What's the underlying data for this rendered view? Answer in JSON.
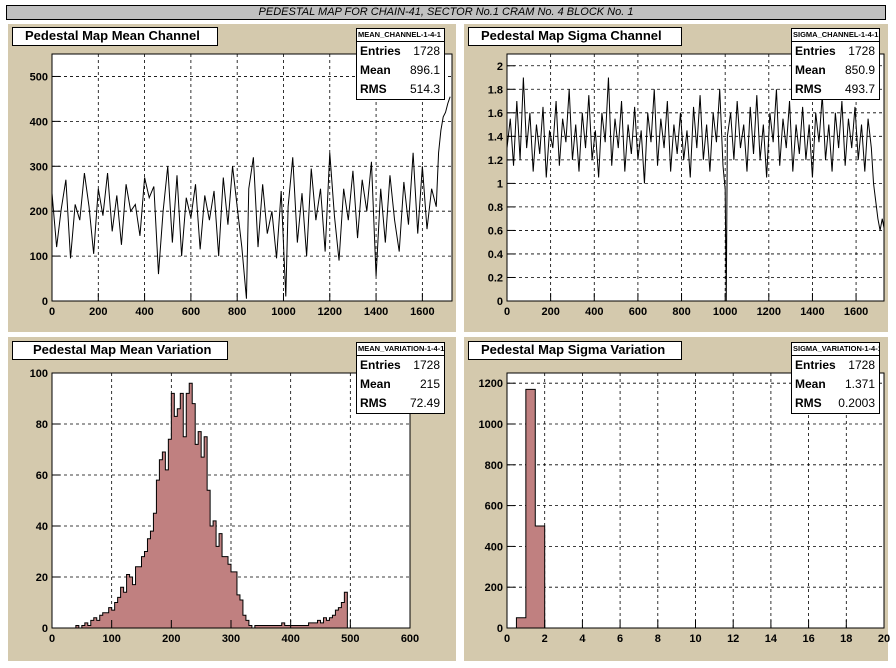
{
  "window": {
    "title": "PEDESTAL MAP FOR CHAIN-41, SECTOR No.1 CRAM No. 4 BLOCK No. 1"
  },
  "footer_text": "",
  "chart_data": [
    {
      "type": "line",
      "title": "Pedestal Map Mean Channel",
      "stats_name": "MEAN_CHANNEL-1-4-1",
      "stats": {
        "entries_label": "Entries",
        "entries": "1728",
        "mean_label": "Mean",
        "mean": "896.1",
        "rms_label": "RMS",
        "rms": "514.3"
      },
      "xlim": [
        0,
        1728
      ],
      "ylim": [
        0,
        550
      ],
      "xticks": [
        0,
        200,
        400,
        600,
        800,
        1000,
        1200,
        1400,
        1600
      ],
      "yticks": [
        0,
        100,
        200,
        300,
        400,
        500
      ],
      "grid": true,
      "series": [
        {
          "points": [
            [
              0,
              240
            ],
            [
              20,
              120
            ],
            [
              40,
              205
            ],
            [
              60,
              270
            ],
            [
              80,
              95
            ],
            [
              100,
              215
            ],
            [
              120,
              180
            ],
            [
              140,
              285
            ],
            [
              160,
              210
            ],
            [
              180,
              105
            ],
            [
              200,
              250
            ],
            [
              220,
              190
            ],
            [
              240,
              285
            ],
            [
              260,
              155
            ],
            [
              280,
              235
            ],
            [
              300,
              125
            ],
            [
              320,
              260
            ],
            [
              340,
              200
            ],
            [
              360,
              215
            ],
            [
              380,
              145
            ],
            [
              400,
              275
            ],
            [
              420,
              230
            ],
            [
              440,
              255
            ],
            [
              460,
              60
            ],
            [
              480,
              200
            ],
            [
              500,
              300
            ],
            [
              520,
              130
            ],
            [
              540,
              280
            ],
            [
              560,
              100
            ],
            [
              580,
              230
            ],
            [
              600,
              185
            ],
            [
              620,
              260
            ],
            [
              640,
              115
            ],
            [
              660,
              235
            ],
            [
              680,
              180
            ],
            [
              700,
              245
            ],
            [
              720,
              100
            ],
            [
              740,
              275
            ],
            [
              760,
              170
            ],
            [
              780,
              300
            ],
            [
              800,
              210
            ],
            [
              820,
              120
            ],
            [
              840,
              5
            ],
            [
              850,
              250
            ],
            [
              870,
              320
            ],
            [
              890,
              120
            ],
            [
              910,
              260
            ],
            [
              930,
              150
            ],
            [
              950,
              200
            ],
            [
              970,
              95
            ],
            [
              990,
              245
            ],
            [
              1010,
              10
            ],
            [
              1020,
              210
            ],
            [
              1040,
              320
            ],
            [
              1060,
              130
            ],
            [
              1080,
              240
            ],
            [
              1100,
              100
            ],
            [
              1120,
              295
            ],
            [
              1140,
              180
            ],
            [
              1160,
              250
            ],
            [
              1180,
              110
            ],
            [
              1200,
              330
            ],
            [
              1220,
              190
            ],
            [
              1240,
              90
            ],
            [
              1260,
              250
            ],
            [
              1280,
              180
            ],
            [
              1300,
              290
            ],
            [
              1320,
              140
            ],
            [
              1340,
              270
            ],
            [
              1360,
              200
            ],
            [
              1380,
              310
            ],
            [
              1400,
              55
            ],
            [
              1420,
              250
            ],
            [
              1440,
              130
            ],
            [
              1460,
              280
            ],
            [
              1480,
              180
            ],
            [
              1500,
              110
            ],
            [
              1520,
              265
            ],
            [
              1540,
              170
            ],
            [
              1560,
              330
            ],
            [
              1580,
              150
            ],
            [
              1600,
              300
            ],
            [
              1620,
              160
            ],
            [
              1640,
              250
            ],
            [
              1660,
              210
            ],
            [
              1670,
              330
            ],
            [
              1680,
              380
            ],
            [
              1690,
              410
            ],
            [
              1700,
              420
            ],
            [
              1710,
              440
            ],
            [
              1720,
              455
            ]
          ]
        }
      ]
    },
    {
      "type": "line",
      "title": "Pedestal Map Sigma Channel",
      "stats_name": "SIGMA_CHANNEL-1-4-1",
      "stats": {
        "entries_label": "Entries",
        "entries": "1728",
        "mean_label": "Mean",
        "mean": "850.9",
        "rms_label": "RMS",
        "rms": "493.7"
      },
      "xlim": [
        0,
        1728
      ],
      "ylim": [
        0,
        2.1
      ],
      "xticks": [
        0,
        200,
        400,
        600,
        800,
        1000,
        1200,
        1400,
        1600
      ],
      "yticks": [
        0,
        0.2,
        0.4,
        0.6,
        0.8,
        1,
        1.2,
        1.4,
        1.6,
        1.8,
        2
      ],
      "grid": true,
      "series": [
        {
          "points": [
            [
              0,
              1.3
            ],
            [
              15,
              1.55
            ],
            [
              30,
              1.15
            ],
            [
              45,
              1.7
            ],
            [
              60,
              1.2
            ],
            [
              75,
              1.9
            ],
            [
              90,
              1.3
            ],
            [
              105,
              1.6
            ],
            [
              120,
              1.1
            ],
            [
              135,
              1.5
            ],
            [
              150,
              1.25
            ],
            [
              165,
              1.65
            ],
            [
              180,
              1.05
            ],
            [
              195,
              1.45
            ],
            [
              210,
              1.3
            ],
            [
              225,
              1.7
            ],
            [
              240,
              1.15
            ],
            [
              255,
              1.55
            ],
            [
              270,
              1.35
            ],
            [
              285,
              1.8
            ],
            [
              300,
              1.2
            ],
            [
              315,
              1.5
            ],
            [
              330,
              1.1
            ],
            [
              345,
              1.6
            ],
            [
              360,
              1.3
            ],
            [
              375,
              1.75
            ],
            [
              390,
              1.2
            ],
            [
              405,
              1.45
            ],
            [
              420,
              1.05
            ],
            [
              435,
              1.6
            ],
            [
              450,
              1.35
            ],
            [
              465,
              1.9
            ],
            [
              480,
              1.15
            ],
            [
              495,
              1.55
            ],
            [
              510,
              1.3
            ],
            [
              525,
              1.7
            ],
            [
              540,
              1.1
            ],
            [
              555,
              1.5
            ],
            [
              570,
              1.25
            ],
            [
              585,
              1.65
            ],
            [
              600,
              1.2
            ],
            [
              615,
              1.45
            ],
            [
              630,
              1.0
            ],
            [
              645,
              1.6
            ],
            [
              660,
              1.35
            ],
            [
              675,
              1.8
            ],
            [
              690,
              1.15
            ],
            [
              705,
              1.55
            ],
            [
              720,
              1.3
            ],
            [
              735,
              1.7
            ],
            [
              750,
              1.1
            ],
            [
              765,
              1.5
            ],
            [
              780,
              1.25
            ],
            [
              795,
              1.6
            ],
            [
              810,
              1.2
            ],
            [
              825,
              1.45
            ],
            [
              840,
              1.05
            ],
            [
              855,
              1.65
            ],
            [
              870,
              1.3
            ],
            [
              885,
              1.75
            ],
            [
              900,
              1.2
            ],
            [
              915,
              1.5
            ],
            [
              930,
              1.1
            ],
            [
              945,
              1.6
            ],
            [
              960,
              1.35
            ],
            [
              975,
              1.8
            ],
            [
              990,
              1.15
            ],
            [
              1000,
              0.95
            ],
            [
              1005,
              0.0
            ],
            [
              1010,
              1.4
            ],
            [
              1025,
              1.6
            ],
            [
              1040,
              1.2
            ],
            [
              1055,
              1.7
            ],
            [
              1070,
              1.3
            ],
            [
              1085,
              1.5
            ],
            [
              1100,
              1.1
            ],
            [
              1115,
              1.65
            ],
            [
              1130,
              1.25
            ],
            [
              1145,
              1.75
            ],
            [
              1160,
              1.2
            ],
            [
              1175,
              1.5
            ],
            [
              1190,
              1.05
            ],
            [
              1205,
              1.6
            ],
            [
              1220,
              1.35
            ],
            [
              1235,
              1.8
            ],
            [
              1250,
              1.15
            ],
            [
              1265,
              1.55
            ],
            [
              1280,
              1.3
            ],
            [
              1295,
              1.7
            ],
            [
              1310,
              1.1
            ],
            [
              1325,
              1.5
            ],
            [
              1340,
              1.25
            ],
            [
              1355,
              1.65
            ],
            [
              1370,
              1.2
            ],
            [
              1385,
              1.5
            ],
            [
              1400,
              1.05
            ],
            [
              1415,
              1.6
            ],
            [
              1430,
              1.35
            ],
            [
              1445,
              1.75
            ],
            [
              1460,
              1.2
            ],
            [
              1475,
              1.5
            ],
            [
              1490,
              1.1
            ],
            [
              1505,
              1.6
            ],
            [
              1520,
              1.3
            ],
            [
              1535,
              1.7
            ],
            [
              1550,
              1.15
            ],
            [
              1565,
              1.55
            ],
            [
              1580,
              1.3
            ],
            [
              1595,
              1.65
            ],
            [
              1610,
              1.2
            ],
            [
              1625,
              1.5
            ],
            [
              1640,
              1.1
            ],
            [
              1655,
              1.55
            ],
            [
              1670,
              1.3
            ],
            [
              1680,
              1.0
            ],
            [
              1690,
              0.85
            ],
            [
              1700,
              0.7
            ],
            [
              1710,
              0.6
            ],
            [
              1720,
              0.7
            ],
            [
              1728,
              0.62
            ]
          ]
        }
      ]
    },
    {
      "type": "histogram",
      "title": "Pedestal Map Mean Variation",
      "stats_name": "MEAN_VARIATION-1-4-1",
      "stats": {
        "entries_label": "Entries",
        "entries": "1728",
        "mean_label": "Mean",
        "mean": "215",
        "rms_label": "RMS",
        "rms": "72.49"
      },
      "xlim": [
        0,
        600
      ],
      "ylim": [
        0,
        100
      ],
      "xticks": [
        0,
        100,
        200,
        300,
        400,
        500,
        600
      ],
      "yticks": [
        0,
        20,
        40,
        60,
        80,
        100
      ],
      "grid": true,
      "color": "#c08080",
      "bin_start": 0,
      "bin_width": 5,
      "values": [
        0,
        0,
        0,
        0,
        0,
        0,
        0,
        0,
        1,
        0,
        1,
        2,
        1,
        3,
        4,
        3,
        5,
        6,
        6,
        8,
        7,
        10,
        12,
        16,
        14,
        21,
        20,
        17,
        24,
        24,
        28,
        30,
        35,
        38,
        45,
        58,
        66,
        69,
        62,
        74,
        92,
        83,
        86,
        92,
        75,
        92,
        96,
        88,
        72,
        77,
        67,
        75,
        54,
        40,
        42,
        32,
        37,
        28,
        28,
        25,
        22,
        22,
        13,
        11,
        5,
        3,
        1,
        0,
        1,
        1,
        1,
        1,
        1,
        1,
        1,
        1,
        1,
        2,
        1,
        1,
        1,
        1,
        1,
        1,
        1,
        1,
        2,
        2,
        2,
        3,
        2,
        4,
        3,
        4,
        5,
        7,
        8,
        10,
        14,
        0
      ]
    },
    {
      "type": "histogram",
      "title": "Pedestal Map Sigma Variation",
      "stats_name": "SIGMA_VARIATION-1-4-1",
      "stats": {
        "entries_label": "Entries",
        "entries": "1728",
        "mean_label": "Mean",
        "mean": "1.371",
        "rms_label": "RMS",
        "rms": "0.2003"
      },
      "xlim": [
        0,
        20
      ],
      "ylim": [
        0,
        1250
      ],
      "xticks": [
        0,
        2,
        4,
        6,
        8,
        10,
        12,
        14,
        16,
        18,
        20
      ],
      "yticks": [
        0,
        200,
        400,
        600,
        800,
        1000,
        1200
      ],
      "grid": true,
      "color": "#c08080",
      "bin_start": 0,
      "bin_width": 0.5,
      "values": [
        0,
        50,
        1170,
        500,
        0,
        0,
        0,
        0,
        0,
        0,
        0,
        0,
        0,
        0,
        0,
        0,
        0,
        0,
        0,
        0,
        0,
        0,
        0,
        0,
        0,
        0,
        0,
        0,
        0,
        0,
        0,
        0,
        0,
        0,
        0,
        0,
        0,
        0,
        0,
        0
      ]
    }
  ]
}
